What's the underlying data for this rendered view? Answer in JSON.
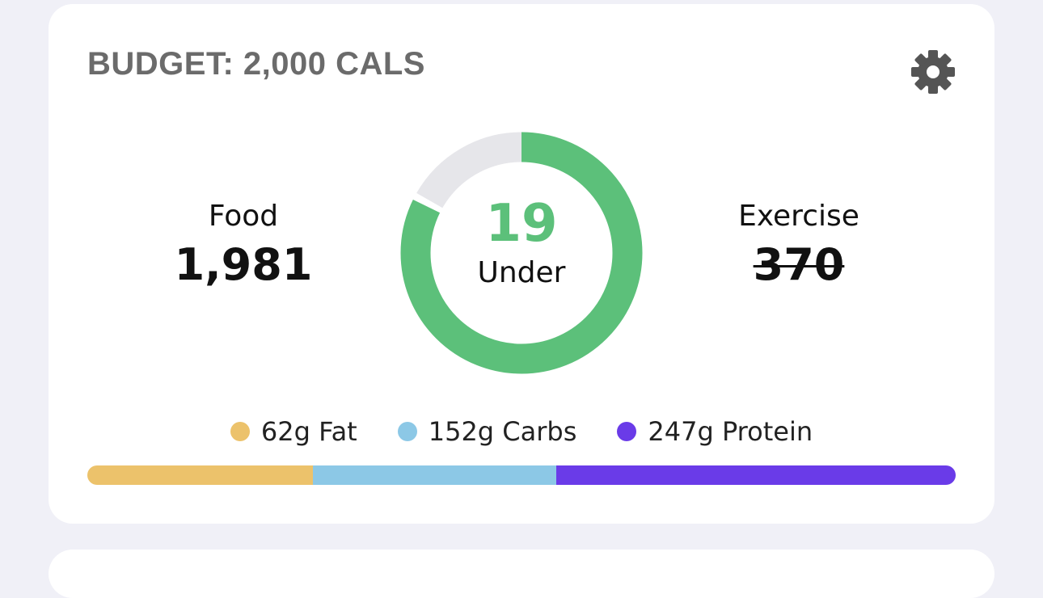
{
  "header": {
    "title": "BUDGET: 2,000 CALS"
  },
  "food": {
    "label": "Food",
    "value": "1,981"
  },
  "exercise": {
    "label": "Exercise",
    "value": "370"
  },
  "remaining": {
    "value": "19",
    "label": "Under"
  },
  "macros": [
    {
      "amount": "62g",
      "name": "Fat",
      "color": "#ecc26b"
    },
    {
      "amount": "152g",
      "name": "Carbs",
      "color": "#8cc8e6"
    },
    {
      "amount": "247g",
      "name": "Protein",
      "color": "#6a3be8"
    }
  ]
}
